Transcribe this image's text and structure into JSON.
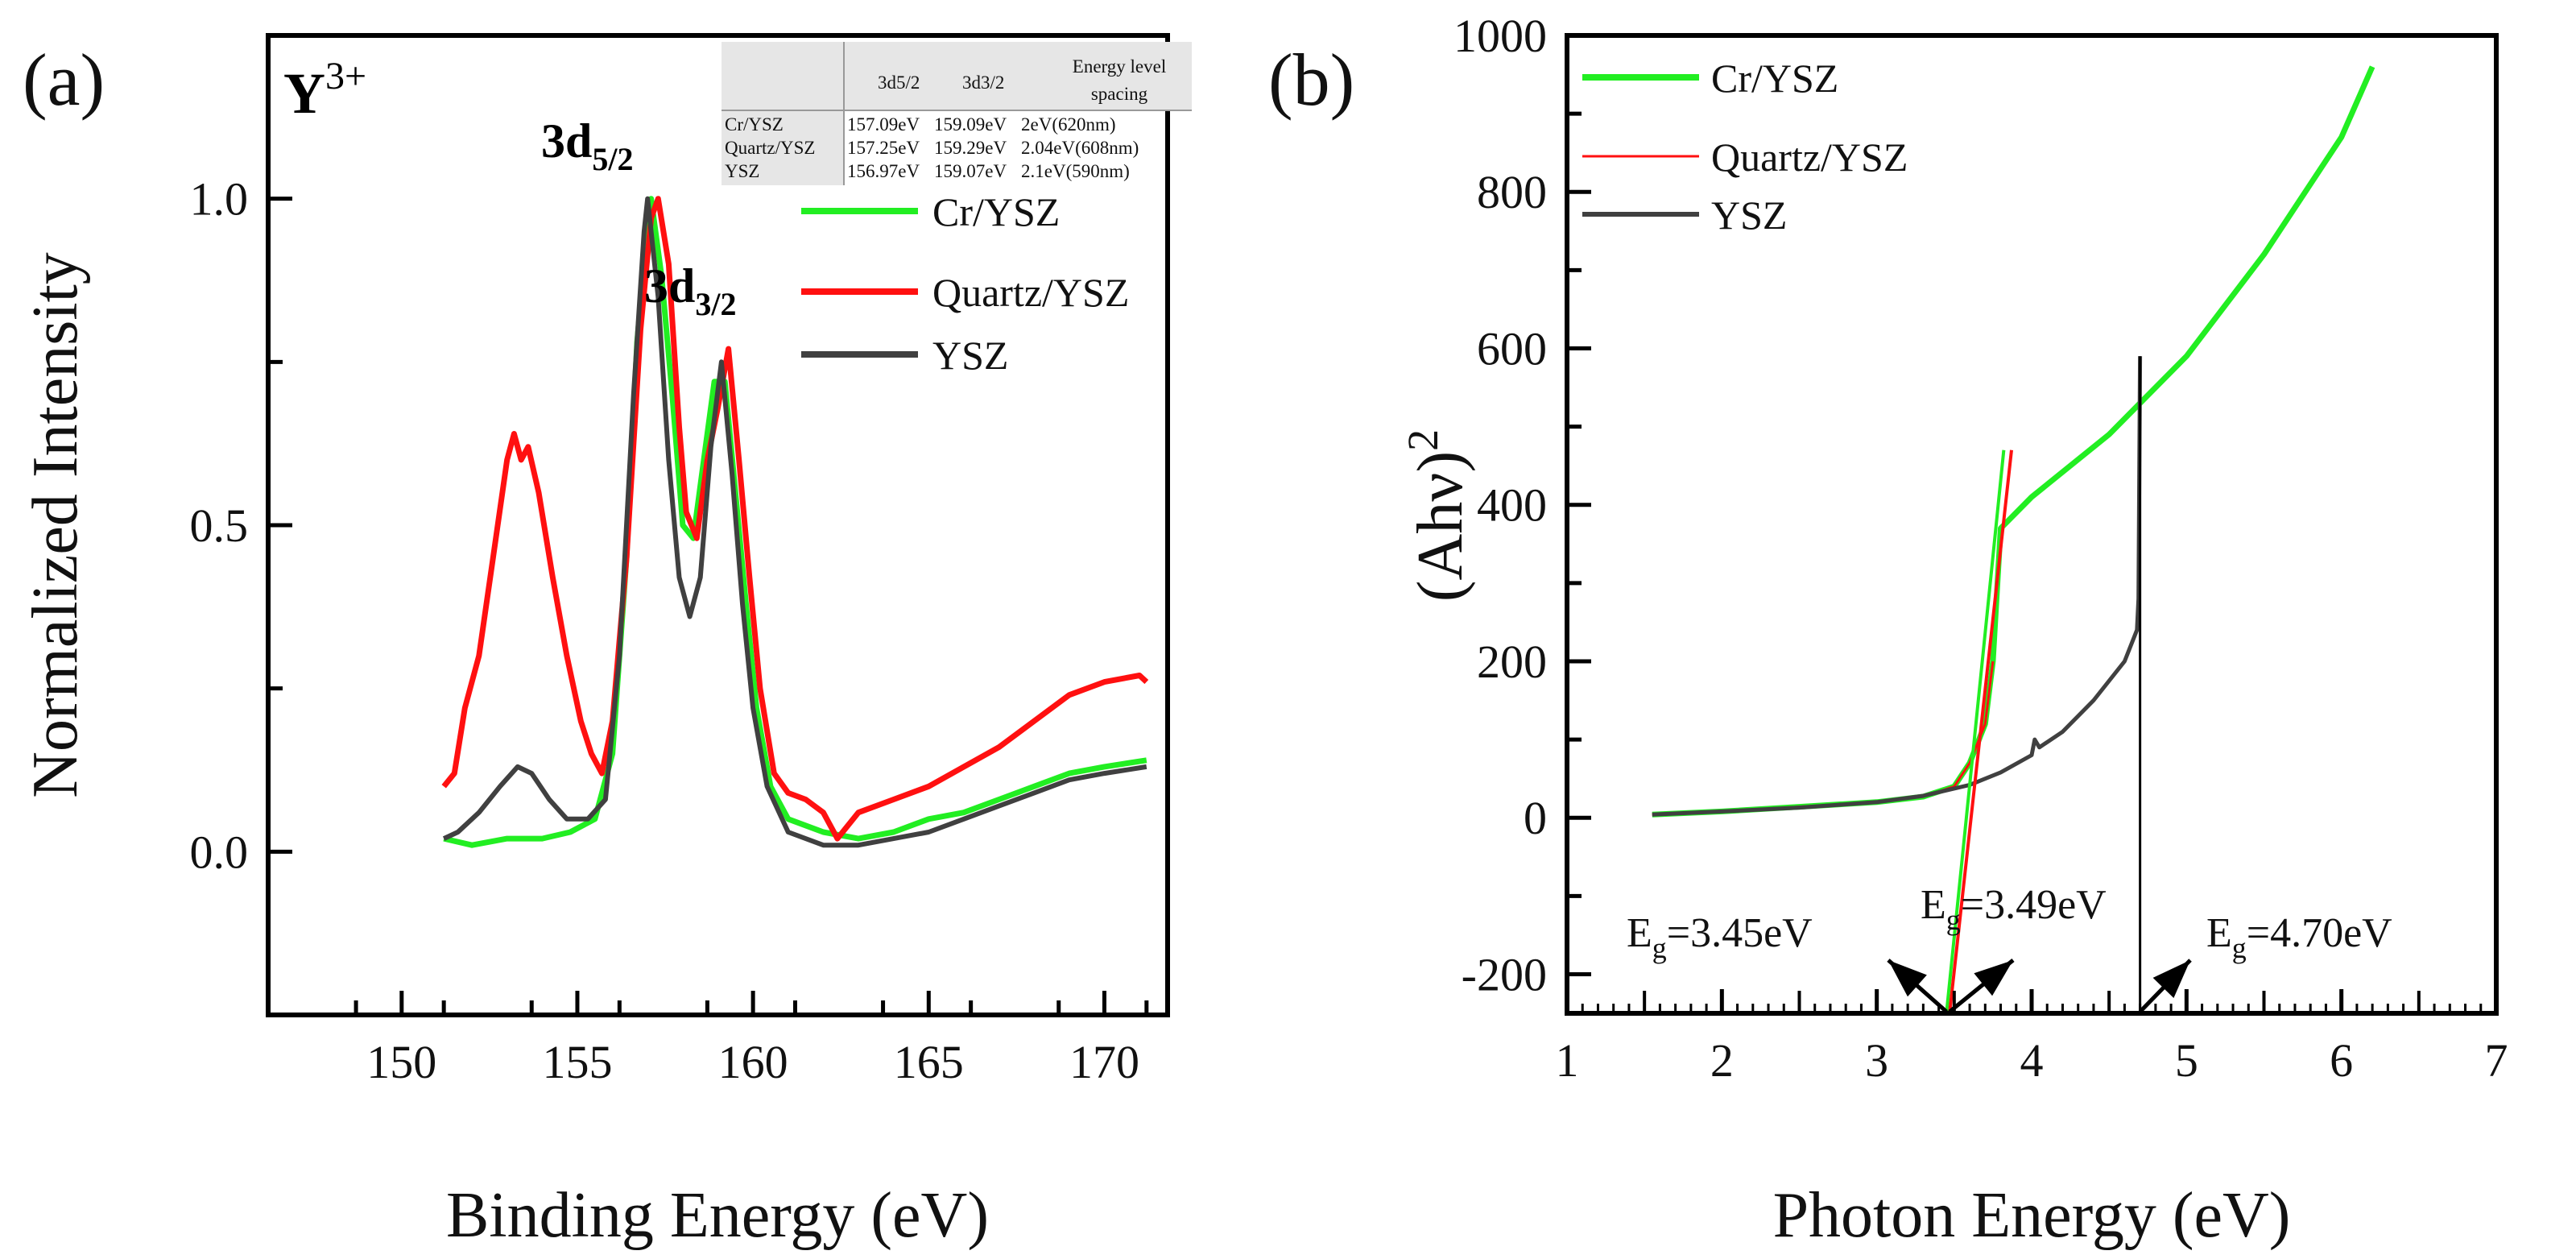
{
  "chart_data": [
    {
      "type": "line",
      "panel_label": "(a)",
      "xlabel": "Binding Energy (eV)",
      "ylabel": "Normalized Intensity",
      "xlim": [
        146.2,
        171.8
      ],
      "ylim": [
        -0.25,
        1.25
      ],
      "xticks": [
        150,
        155,
        160,
        165,
        170
      ],
      "yticks": [
        0.0,
        0.5,
        1.0
      ],
      "ytick_labels": [
        "0.0",
        "0.5",
        "1.0"
      ],
      "grid": false,
      "legend_placement": "top-right",
      "annotations": {
        "ion": {
          "base": "Y",
          "sup": "3+"
        },
        "peak1": {
          "base": "3d",
          "sub": "5/2"
        },
        "peak2": {
          "base": "3d",
          "sub": "3/2"
        }
      },
      "table": {
        "headers": [
          "",
          "3d5/2",
          "3d3/2",
          "Energy level",
          "spacing"
        ],
        "rows": [
          [
            "Cr/YSZ",
            "157.09eV",
            "159.09eV",
            "2eV(620nm)"
          ],
          [
            "Quartz/YSZ",
            "157.25eV",
            "159.29eV",
            "2.04eV(608nm)"
          ],
          [
            "YSZ",
            "156.97eV",
            "159.07eV",
            "2.1eV(590nm)"
          ]
        ]
      },
      "series": [
        {
          "name": "Cr/YSZ",
          "color": "#22ee22",
          "x": [
            151.2,
            152,
            153,
            154,
            154.8,
            155.5,
            156,
            156.4,
            156.7,
            157.0,
            157.1,
            157.4,
            157.7,
            158.0,
            158.3,
            158.6,
            158.9,
            159.2,
            159.5,
            159.8,
            160.1,
            160.5,
            161,
            162,
            163,
            164,
            165,
            166,
            167,
            168,
            169,
            170,
            171.2
          ],
          "y": [
            0.02,
            0.01,
            0.02,
            0.02,
            0.03,
            0.05,
            0.15,
            0.45,
            0.78,
            0.96,
            1.0,
            0.88,
            0.7,
            0.5,
            0.48,
            0.6,
            0.72,
            0.72,
            0.55,
            0.38,
            0.22,
            0.1,
            0.05,
            0.03,
            0.02,
            0.03,
            0.05,
            0.06,
            0.08,
            0.1,
            0.12,
            0.13,
            0.14
          ]
        },
        {
          "name": "Quartz/YSZ",
          "color": "#ff1010",
          "x": [
            151.2,
            151.5,
            151.8,
            152.2,
            152.6,
            153.0,
            153.2,
            153.4,
            153.6,
            153.9,
            154.3,
            154.7,
            155.1,
            155.4,
            155.7,
            156.0,
            156.4,
            156.8,
            157.1,
            157.3,
            157.6,
            157.9,
            158.1,
            158.4,
            158.7,
            159.0,
            159.3,
            159.6,
            159.9,
            160.2,
            160.6,
            161.0,
            161.5,
            162.0,
            162.4,
            163,
            164,
            165,
            166,
            167,
            168,
            169,
            170,
            171,
            171.2
          ],
          "y": [
            0.1,
            0.12,
            0.22,
            0.3,
            0.45,
            0.6,
            0.64,
            0.6,
            0.62,
            0.55,
            0.42,
            0.3,
            0.2,
            0.15,
            0.12,
            0.2,
            0.45,
            0.8,
            0.97,
            1.0,
            0.9,
            0.65,
            0.52,
            0.48,
            0.6,
            0.68,
            0.77,
            0.6,
            0.42,
            0.25,
            0.12,
            0.09,
            0.08,
            0.06,
            0.02,
            0.06,
            0.08,
            0.1,
            0.13,
            0.16,
            0.2,
            0.24,
            0.26,
            0.27,
            0.26
          ]
        },
        {
          "name": "YSZ",
          "color": "#404040",
          "x": [
            151.2,
            151.6,
            152.2,
            152.8,
            153.3,
            153.7,
            154.2,
            154.7,
            155.3,
            155.8,
            156.2,
            156.6,
            156.9,
            157.0,
            157.3,
            157.6,
            157.9,
            158.2,
            158.5,
            158.8,
            159.1,
            159.4,
            159.7,
            160,
            160.4,
            161,
            162,
            163,
            164,
            165,
            166,
            167,
            168,
            169,
            170,
            171.2
          ],
          "y": [
            0.02,
            0.03,
            0.06,
            0.1,
            0.13,
            0.12,
            0.08,
            0.05,
            0.05,
            0.08,
            0.3,
            0.7,
            0.95,
            1.0,
            0.85,
            0.6,
            0.42,
            0.36,
            0.42,
            0.62,
            0.75,
            0.58,
            0.38,
            0.22,
            0.1,
            0.03,
            0.01,
            0.01,
            0.02,
            0.03,
            0.05,
            0.07,
            0.09,
            0.11,
            0.12,
            0.13
          ]
        }
      ]
    },
    {
      "type": "line",
      "panel_label": "(b)",
      "xlabel": "Photon Energy (eV)",
      "ylabel": {
        "base": "(Ahν)",
        "sup": "2"
      },
      "xlim": [
        1,
        7
      ],
      "ylim": [
        -250,
        1000
      ],
      "xticks": [
        1,
        2,
        3,
        4,
        5,
        6,
        7
      ],
      "yticks": [
        -200,
        0,
        200,
        400,
        600,
        800,
        1000
      ],
      "grid": false,
      "legend_placement": "top-left",
      "series": [
        {
          "name": "Cr/YSZ",
          "color": "#22ee22",
          "x": [
            1.55,
            2,
            2.5,
            3,
            3.3,
            3.5,
            3.6,
            3.7,
            3.75,
            3.8,
            4,
            4.5,
            5,
            5.5,
            6,
            6.2
          ],
          "y": [
            4,
            8,
            14,
            20,
            27,
            40,
            70,
            120,
            200,
            370,
            410,
            490,
            590,
            720,
            870,
            960
          ]
        },
        {
          "name": "Quartz/YSZ",
          "color": "#ff1010",
          "x": [
            1.55,
            2,
            2.5,
            3,
            3.3,
            3.5,
            3.6,
            3.7,
            3.75
          ],
          "y": [
            4,
            8,
            14,
            20,
            27,
            40,
            70,
            120,
            200
          ]
        },
        {
          "name": "YSZ",
          "color": "#404040",
          "x": [
            1.55,
            2,
            2.5,
            3,
            3.3,
            3.6,
            3.8,
            4,
            4.02,
            4.05,
            4.2,
            4.4,
            4.6,
            4.68,
            4.69,
            4.7
          ],
          "y": [
            4,
            8,
            13,
            20,
            28,
            42,
            58,
            80,
            100,
            90,
            110,
            150,
            200,
            240,
            280,
            590
          ]
        }
      ],
      "fit_lines": [
        {
          "series": "Cr/YSZ",
          "color": "#22ee22",
          "x": [
            3.45,
            3.82
          ],
          "y": [
            -250,
            470
          ]
        },
        {
          "series": "Quartz/YSZ",
          "color": "#ff1010",
          "x": [
            3.47,
            3.87
          ],
          "y": [
            -250,
            470
          ]
        },
        {
          "series": "YSZ",
          "color": "#000000",
          "x": [
            4.7,
            4.7
          ],
          "y": [
            -250,
            590
          ]
        }
      ],
      "annotations": [
        {
          "base": "E",
          "sub": "g",
          "text": "=3.45eV",
          "value": 3.45
        },
        {
          "base": "E",
          "sub": "g",
          "text": "=3.49eV",
          "value": 3.49
        },
        {
          "base": "E",
          "sub": "g",
          "text": "=4.70eV",
          "value": 4.7
        }
      ]
    }
  ]
}
